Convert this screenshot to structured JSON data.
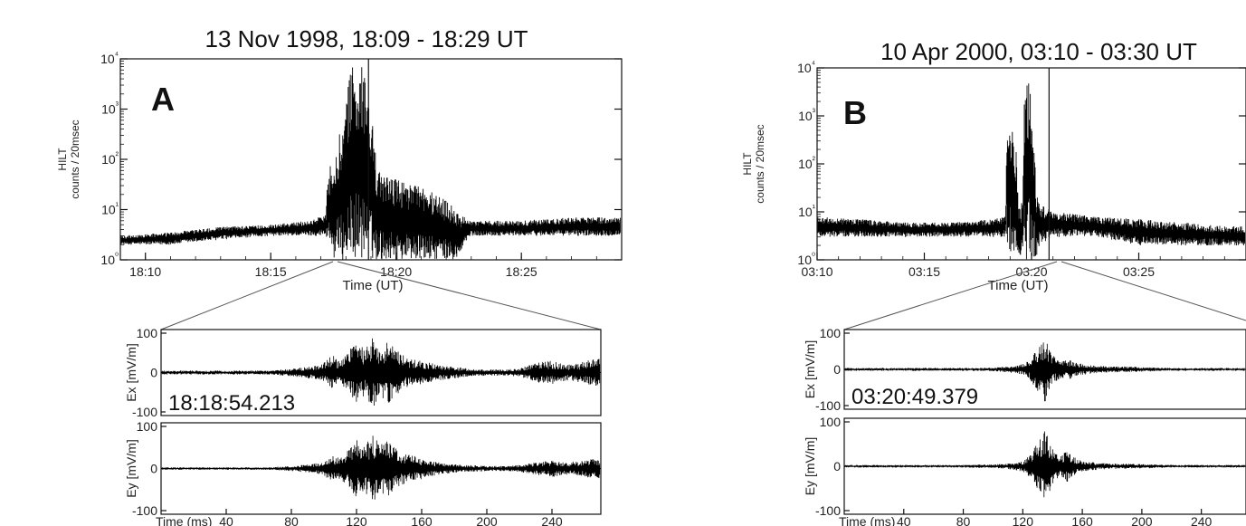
{
  "chart_data": [
    {
      "panel": "A",
      "type": "line",
      "title": "13 Nov 1998, 18:09 - 18:29 UT",
      "ylabel": "HILT\ncounts / 20msec",
      "xlabel": "Time (UT)",
      "yscale": "log",
      "ylim": [
        1,
        10000
      ],
      "yticks": [
        "10⁰",
        "10¹",
        "10²",
        "10³",
        "10⁴"
      ],
      "xlim": [
        9,
        29
      ],
      "xticks": [
        "18:10",
        "18:15",
        "18:20",
        "18:25"
      ],
      "event_marker": "18:18:54",
      "series": [
        {
          "x": [
            9,
            11,
            13,
            15,
            16.5,
            17.2,
            17.5,
            17.8,
            18.0,
            18.3,
            18.6,
            18.9,
            19.2,
            19.5,
            20.0,
            20.8,
            21.3,
            21.6,
            22.0,
            22.5,
            23,
            25,
            27,
            29
          ],
          "low": [
            2,
            2,
            2.5,
            3,
            3,
            3,
            1,
            1,
            1,
            1,
            1,
            1,
            1,
            1,
            1,
            1,
            1,
            1,
            1,
            1,
            3,
            3,
            3,
            3
          ],
          "high": [
            3,
            3.5,
            4.5,
            5,
            6,
            8,
            120,
            380,
            900,
            8000,
            9000,
            1100,
            60,
            50,
            40,
            30,
            25,
            20,
            15,
            8,
            6,
            6,
            7,
            7
          ]
        }
      ]
    },
    {
      "panel": "A-Ex",
      "type": "line",
      "ylabel": "Ex [mV/m]",
      "ylim": [
        -100,
        100
      ],
      "yticks": [
        "100",
        "0",
        "-100"
      ],
      "timestamp": "18:18:54.213",
      "x": [
        0,
        40,
        65,
        70,
        75,
        80,
        85,
        90,
        95,
        100,
        105,
        110,
        115,
        120,
        125,
        130,
        135,
        140,
        145,
        150,
        160,
        170,
        180,
        190,
        200,
        210,
        220,
        230,
        240,
        250,
        260,
        270
      ],
      "envelope": [
        5,
        5,
        5,
        6,
        8,
        10,
        12,
        15,
        18,
        25,
        45,
        30,
        55,
        85,
        60,
        90,
        70,
        80,
        55,
        40,
        30,
        20,
        15,
        10,
        8,
        8,
        10,
        25,
        30,
        20,
        28,
        40
      ]
    },
    {
      "panel": "A-Ey",
      "type": "line",
      "ylabel": "Ey [mV/m]",
      "ylim": [
        -100,
        100
      ],
      "yticks": [
        "100",
        "0",
        "-100"
      ],
      "xlabel": "Time (ms)",
      "xticks": [
        "40",
        "80",
        "120",
        "160",
        "200",
        "240"
      ],
      "x": [
        0,
        40,
        65,
        70,
        75,
        80,
        85,
        90,
        95,
        100,
        105,
        110,
        115,
        120,
        125,
        130,
        135,
        140,
        145,
        150,
        160,
        170,
        180,
        190,
        200,
        210,
        220,
        230,
        240,
        250,
        260,
        270
      ],
      "envelope": [
        3,
        3,
        3,
        4,
        5,
        6,
        8,
        10,
        12,
        18,
        30,
        25,
        45,
        70,
        55,
        80,
        60,
        70,
        45,
        35,
        25,
        15,
        10,
        8,
        6,
        6,
        8,
        15,
        20,
        15,
        20,
        25
      ]
    },
    {
      "panel": "B",
      "type": "line",
      "title": "10 Apr 2000, 03:10 - 03:30 UT",
      "ylabel": "HILT\ncounts / 20msec",
      "xlabel": "Time (UT)",
      "yscale": "log",
      "ylim": [
        1,
        10000
      ],
      "yticks": [
        "10⁰",
        "10¹",
        "10²",
        "10³",
        "10⁴"
      ],
      "xlim": [
        10,
        30
      ],
      "xticks": [
        "03:10",
        "03:15",
        "03:20",
        "03:25"
      ],
      "event_marker": "03:20:49",
      "series": [
        {
          "x": [
            10,
            12,
            14,
            16,
            18,
            18.8,
            19.0,
            19.2,
            19.4,
            19.6,
            19.7,
            19.9,
            20.0,
            20.2,
            20.4,
            21,
            23,
            25,
            27,
            29,
            30
          ],
          "low": [
            3,
            3,
            3,
            3,
            3,
            3,
            1,
            1,
            1,
            1,
            1,
            1,
            1,
            1,
            2,
            3,
            3,
            2,
            2,
            2,
            2
          ],
          "high": [
            8,
            7,
            6,
            6,
            7,
            8,
            1500,
            300,
            10,
            20,
            4000,
            6000,
            800,
            30,
            15,
            10,
            8,
            7,
            6,
            5,
            5
          ]
        }
      ]
    },
    {
      "panel": "B-Ex",
      "type": "line",
      "ylabel": "Ex [mV/m]",
      "ylim": [
        -100,
        100
      ],
      "yticks": [
        "100",
        "0",
        "-100"
      ],
      "timestamp": "03:20:49.379",
      "x": [
        0,
        60,
        80,
        100,
        110,
        120,
        125,
        130,
        135,
        140,
        145,
        150,
        155,
        160,
        170,
        180,
        190,
        200,
        210,
        220,
        240,
        260
      ],
      "envelope": [
        4,
        4,
        4,
        5,
        8,
        15,
        30,
        60,
        90,
        40,
        25,
        30,
        20,
        15,
        10,
        8,
        8,
        6,
        5,
        4,
        4,
        4
      ]
    },
    {
      "panel": "B-Ey",
      "type": "line",
      "ylabel": "Ey [mV/m]",
      "ylim": [
        -100,
        100
      ],
      "yticks": [
        "100",
        "0",
        "-100"
      ],
      "xlabel": "Time (ms)",
      "xticks": [
        "40",
        "80",
        "120",
        "160",
        "200",
        "240"
      ],
      "x": [
        0,
        60,
        80,
        100,
        110,
        120,
        125,
        130,
        135,
        140,
        145,
        150,
        155,
        160,
        170,
        180,
        190,
        200,
        210,
        220,
        240,
        260
      ],
      "envelope": [
        3,
        3,
        3,
        4,
        6,
        12,
        25,
        55,
        85,
        40,
        25,
        35,
        20,
        12,
        8,
        6,
        6,
        5,
        4,
        3,
        3,
        3
      ]
    }
  ]
}
